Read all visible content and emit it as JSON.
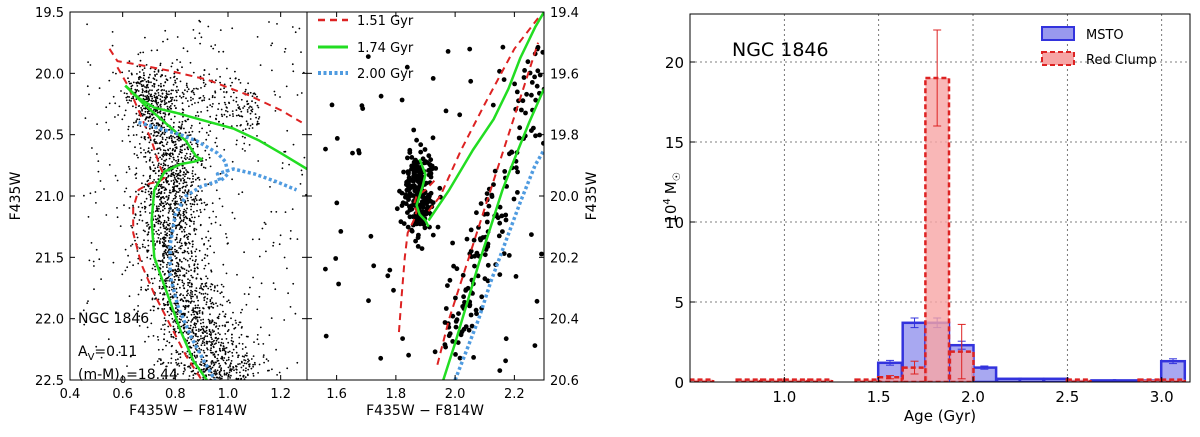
{
  "chart_data": [
    {
      "type": "scatter",
      "panel": "cmd-left",
      "xlabel": "F435W − F814W",
      "ylabel": "F435W",
      "xlim": [
        0.4,
        1.3
      ],
      "ylim": [
        22.5,
        19.5
      ],
      "xticks": [
        "0.4",
        "0.6",
        "0.8",
        "1.0",
        "1.2"
      ],
      "yticks": [
        "19.5",
        "20.0",
        "20.5",
        "21.0",
        "21.5",
        "22.0",
        "22.5"
      ],
      "grid": false,
      "annotations": [
        "NGC 1846",
        "A",
        "V",
        "=0.11",
        "(m-M)",
        "0",
        "=18.44"
      ],
      "series": [
        {
          "name": "1.51 Gyr",
          "color": "#dd2222",
          "style": "dashed",
          "x": [
            0.55,
            0.58,
            0.66,
            0.78,
            0.92,
            1.08,
            1.2,
            1.28
          ],
          "y": [
            19.8,
            19.9,
            19.93,
            19.98,
            20.05,
            20.18,
            20.3,
            20.4
          ]
        },
        {
          "name": "1.51 Gyr",
          "color": "#dd2222",
          "style": "dashed",
          "x": [
            0.58,
            0.62,
            0.65,
            0.68,
            0.71,
            0.74,
            0.76,
            0.74,
            0.7,
            0.66,
            0.64,
            0.64,
            0.67,
            0.72,
            0.78,
            0.84,
            0.9
          ],
          "y": [
            19.95,
            20.1,
            20.25,
            20.4,
            20.55,
            20.75,
            20.85,
            20.88,
            20.9,
            20.95,
            21.1,
            21.3,
            21.55,
            21.8,
            22.05,
            22.3,
            22.5
          ]
        },
        {
          "name": "1.74 Gyr",
          "color": "#22dd22",
          "style": "solid",
          "x": [
            0.61,
            0.66,
            0.72,
            0.8,
            0.9,
            1.02,
            1.12,
            1.2,
            1.3
          ],
          "y": [
            20.1,
            20.2,
            20.28,
            20.32,
            20.38,
            20.45,
            20.55,
            20.65,
            20.78
          ]
        },
        {
          "name": "1.74 Gyr",
          "color": "#22dd22",
          "style": "solid",
          "x": [
            0.61,
            0.68,
            0.76,
            0.84,
            0.88,
            0.9,
            0.87,
            0.82,
            0.76,
            0.72,
            0.71,
            0.72,
            0.77,
            0.82,
            0.87,
            0.92
          ],
          "y": [
            20.1,
            20.25,
            20.4,
            20.55,
            20.68,
            20.7,
            20.72,
            20.74,
            20.8,
            20.95,
            21.2,
            21.5,
            21.8,
            22.1,
            22.35,
            22.5
          ]
        },
        {
          "name": "2.00 Gyr",
          "color": "#4f9be0",
          "style": "dotted",
          "x": [
            0.66,
            0.74,
            0.82,
            0.88,
            0.92,
            0.96,
            0.99,
            1.0,
            0.97,
            0.96,
            1.02,
            1.1,
            1.18,
            1.26
          ],
          "y": [
            20.4,
            20.45,
            20.5,
            20.55,
            20.6,
            20.65,
            20.72,
            20.82,
            20.88,
            20.82,
            20.78,
            20.82,
            20.88,
            20.95
          ]
        },
        {
          "name": "2.00 Gyr",
          "color": "#4f9be0",
          "style": "dotted",
          "x": [
            0.96,
            0.9,
            0.84,
            0.8,
            0.78,
            0.78,
            0.81,
            0.86,
            0.91,
            0.95
          ],
          "y": [
            20.88,
            20.92,
            21.0,
            21.15,
            21.4,
            21.65,
            21.9,
            22.15,
            22.35,
            22.5
          ]
        }
      ]
    },
    {
      "type": "scatter",
      "panel": "cmd-right",
      "xlabel": "F435W − F814W",
      "ylabel": "F435W",
      "xlim": [
        1.5,
        2.3
      ],
      "ylim": [
        20.6,
        19.4
      ],
      "xticks": [
        "1.6",
        "1.8",
        "2.0",
        "2.2"
      ],
      "yticks": [
        "19.4",
        "19.6",
        "19.8",
        "20.0",
        "20.2",
        "20.4",
        "20.6"
      ],
      "grid": false,
      "legend": "top-left",
      "series": [
        {
          "name": "1.51 Gyr",
          "color": "#dd2222",
          "style": "dashed",
          "x": [
            1.93,
            1.9,
            1.87,
            1.86,
            1.87,
            1.86,
            1.84,
            1.83,
            1.82,
            1.81
          ],
          "y": [
            19.95,
            19.98,
            20.0,
            20.03,
            20.05,
            20.08,
            20.12,
            20.2,
            20.32,
            20.45
          ]
        },
        {
          "name": "1.51 Gyr",
          "color": "#dd2222",
          "style": "dashed",
          "x": [
            1.91,
            1.95,
            2.02,
            2.1,
            2.2,
            2.28
          ],
          "y": [
            20.05,
            20.0,
            19.85,
            19.7,
            19.52,
            19.42
          ]
        },
        {
          "name": "1.51 Gyr",
          "color": "#dd2222",
          "style": "dashed",
          "x": [
            1.94,
            1.98,
            2.03,
            2.08,
            2.13,
            2.18,
            2.23,
            2.28
          ],
          "y": [
            20.55,
            20.4,
            20.25,
            20.1,
            19.95,
            19.8,
            19.65,
            19.5
          ]
        },
        {
          "name": "1.74 Gyr",
          "color": "#22dd22",
          "style": "solid",
          "x": [
            1.88,
            1.9,
            1.89,
            1.88,
            1.87,
            1.88,
            1.9,
            1.91
          ],
          "y": [
            19.88,
            19.93,
            19.97,
            20.0,
            20.03,
            20.06,
            20.08,
            20.1
          ]
        },
        {
          "name": "1.74 Gyr",
          "color": "#22dd22",
          "style": "solid",
          "x": [
            1.91,
            1.98,
            2.06,
            2.13,
            2.18,
            2.22,
            2.27,
            2.3
          ],
          "y": [
            20.08,
            19.98,
            19.85,
            19.75,
            19.65,
            19.55,
            19.45,
            19.4
          ]
        },
        {
          "name": "1.74 Gyr",
          "color": "#22dd22",
          "style": "solid",
          "x": [
            1.96,
            2.0,
            2.04,
            2.08,
            2.12,
            2.16,
            2.2,
            2.25,
            2.3
          ],
          "y": [
            20.6,
            20.48,
            20.35,
            20.22,
            20.1,
            19.98,
            19.88,
            19.76,
            19.65
          ]
        },
        {
          "name": "2.00 Gyr",
          "color": "#4f9be0",
          "style": "dotted",
          "x": [
            2.0,
            2.04,
            2.08,
            2.12,
            2.17,
            2.22,
            2.27,
            2.3
          ],
          "y": [
            20.6,
            20.5,
            20.4,
            20.28,
            20.15,
            20.02,
            19.9,
            19.85
          ]
        }
      ]
    },
    {
      "type": "bar",
      "panel": "age-histogram",
      "title": "NGC 1846",
      "xlabel": "Age (Gyr)",
      "ylabel_main": "10",
      "ylabel_sup": "4",
      "ylabel_unit": "M",
      "ylabel_symbol": "☉",
      "xlim": [
        0.5,
        3.15
      ],
      "ylim": [
        0,
        23
      ],
      "xticks": [
        "1.0",
        "1.5",
        "2.0",
        "2.5",
        "3.0"
      ],
      "yticks": [
        "0",
        "5",
        "10",
        "15",
        "20"
      ],
      "grid": true,
      "legend": "top-right",
      "bin_width": 0.125,
      "series": [
        {
          "name": "MSTO",
          "color": "#4444ee",
          "x": [
            1.56,
            1.69,
            1.81,
            1.94,
            2.06,
            2.19,
            2.31,
            2.44,
            2.56,
            2.69,
            2.81,
            2.94,
            3.06
          ],
          "values": [
            1.2,
            3.7,
            3.7,
            2.3,
            0.9,
            0.2,
            0.2,
            0.2,
            0.05,
            0.1,
            0.1,
            0.1,
            1.3
          ],
          "errors": [
            0.15,
            0.3,
            0.3,
            0.25,
            0.1,
            0.05,
            0.05,
            0.05,
            0.05,
            0.05,
            0.05,
            0.05,
            0.15
          ]
        },
        {
          "name": "Red Clump",
          "color": "#ee4444",
          "x": [
            1.56,
            1.69,
            1.81,
            1.94
          ],
          "values": [
            0.3,
            0.9,
            19.0,
            1.9
          ],
          "errors": [
            0.1,
            0.4,
            3.0,
            1.7
          ]
        }
      ]
    }
  ]
}
